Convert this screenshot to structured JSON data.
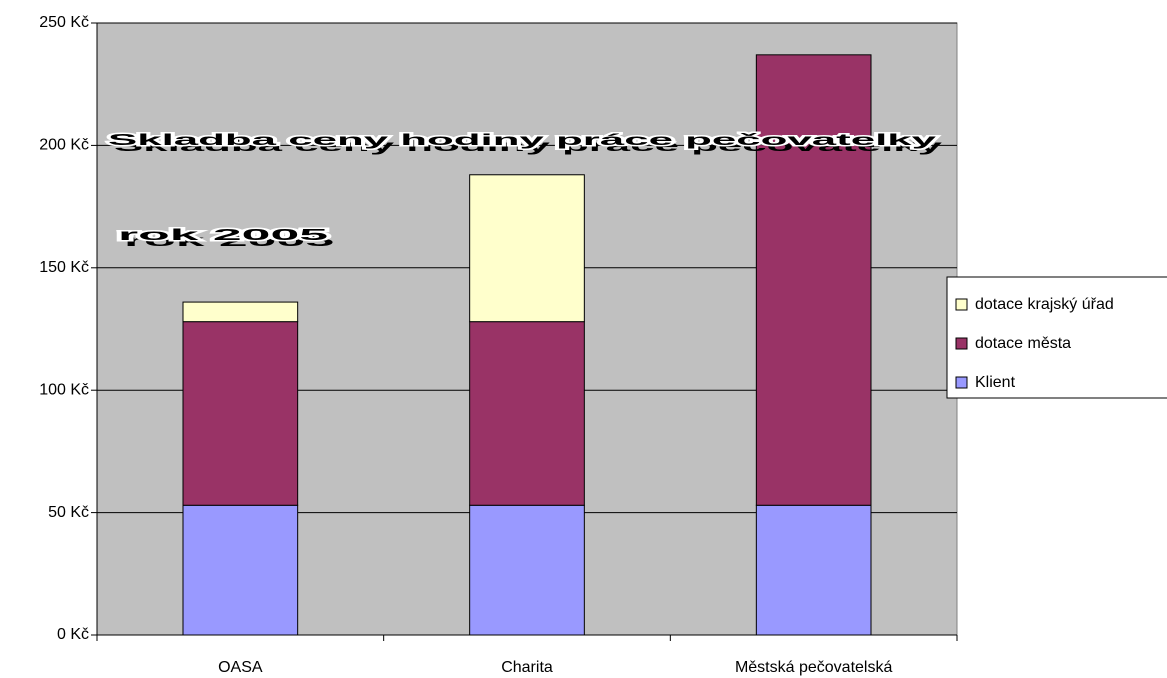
{
  "chart_data": {
    "type": "stacked_bar",
    "title": "Skladba ceny hodiny práce pečovatelky",
    "subtitle": "rok 2005",
    "categories": [
      "OASA",
      "Charita",
      "Městská pečovatelská"
    ],
    "series": [
      {
        "name": "Klient",
        "color": "#9999ff",
        "values": [
          53,
          53,
          53
        ]
      },
      {
        "name": "dotace města",
        "color": "#993366",
        "values": [
          75,
          75,
          184
        ]
      },
      {
        "name": "dotace krajský úřad",
        "color": "#ffffcc",
        "values": [
          8,
          60,
          0
        ]
      }
    ],
    "ylim": [
      0,
      250
    ],
    "yticks": [
      {
        "value": 0,
        "label": "0 Kč"
      },
      {
        "value": 50,
        "label": "50 Kč"
      },
      {
        "value": 100,
        "label": "100 Kč"
      },
      {
        "value": 150,
        "label": "150 Kč"
      },
      {
        "value": 200,
        "label": "200 Kč"
      },
      {
        "value": 250,
        "label": "250 Kč"
      }
    ],
    "grid": true,
    "legend": "right"
  }
}
